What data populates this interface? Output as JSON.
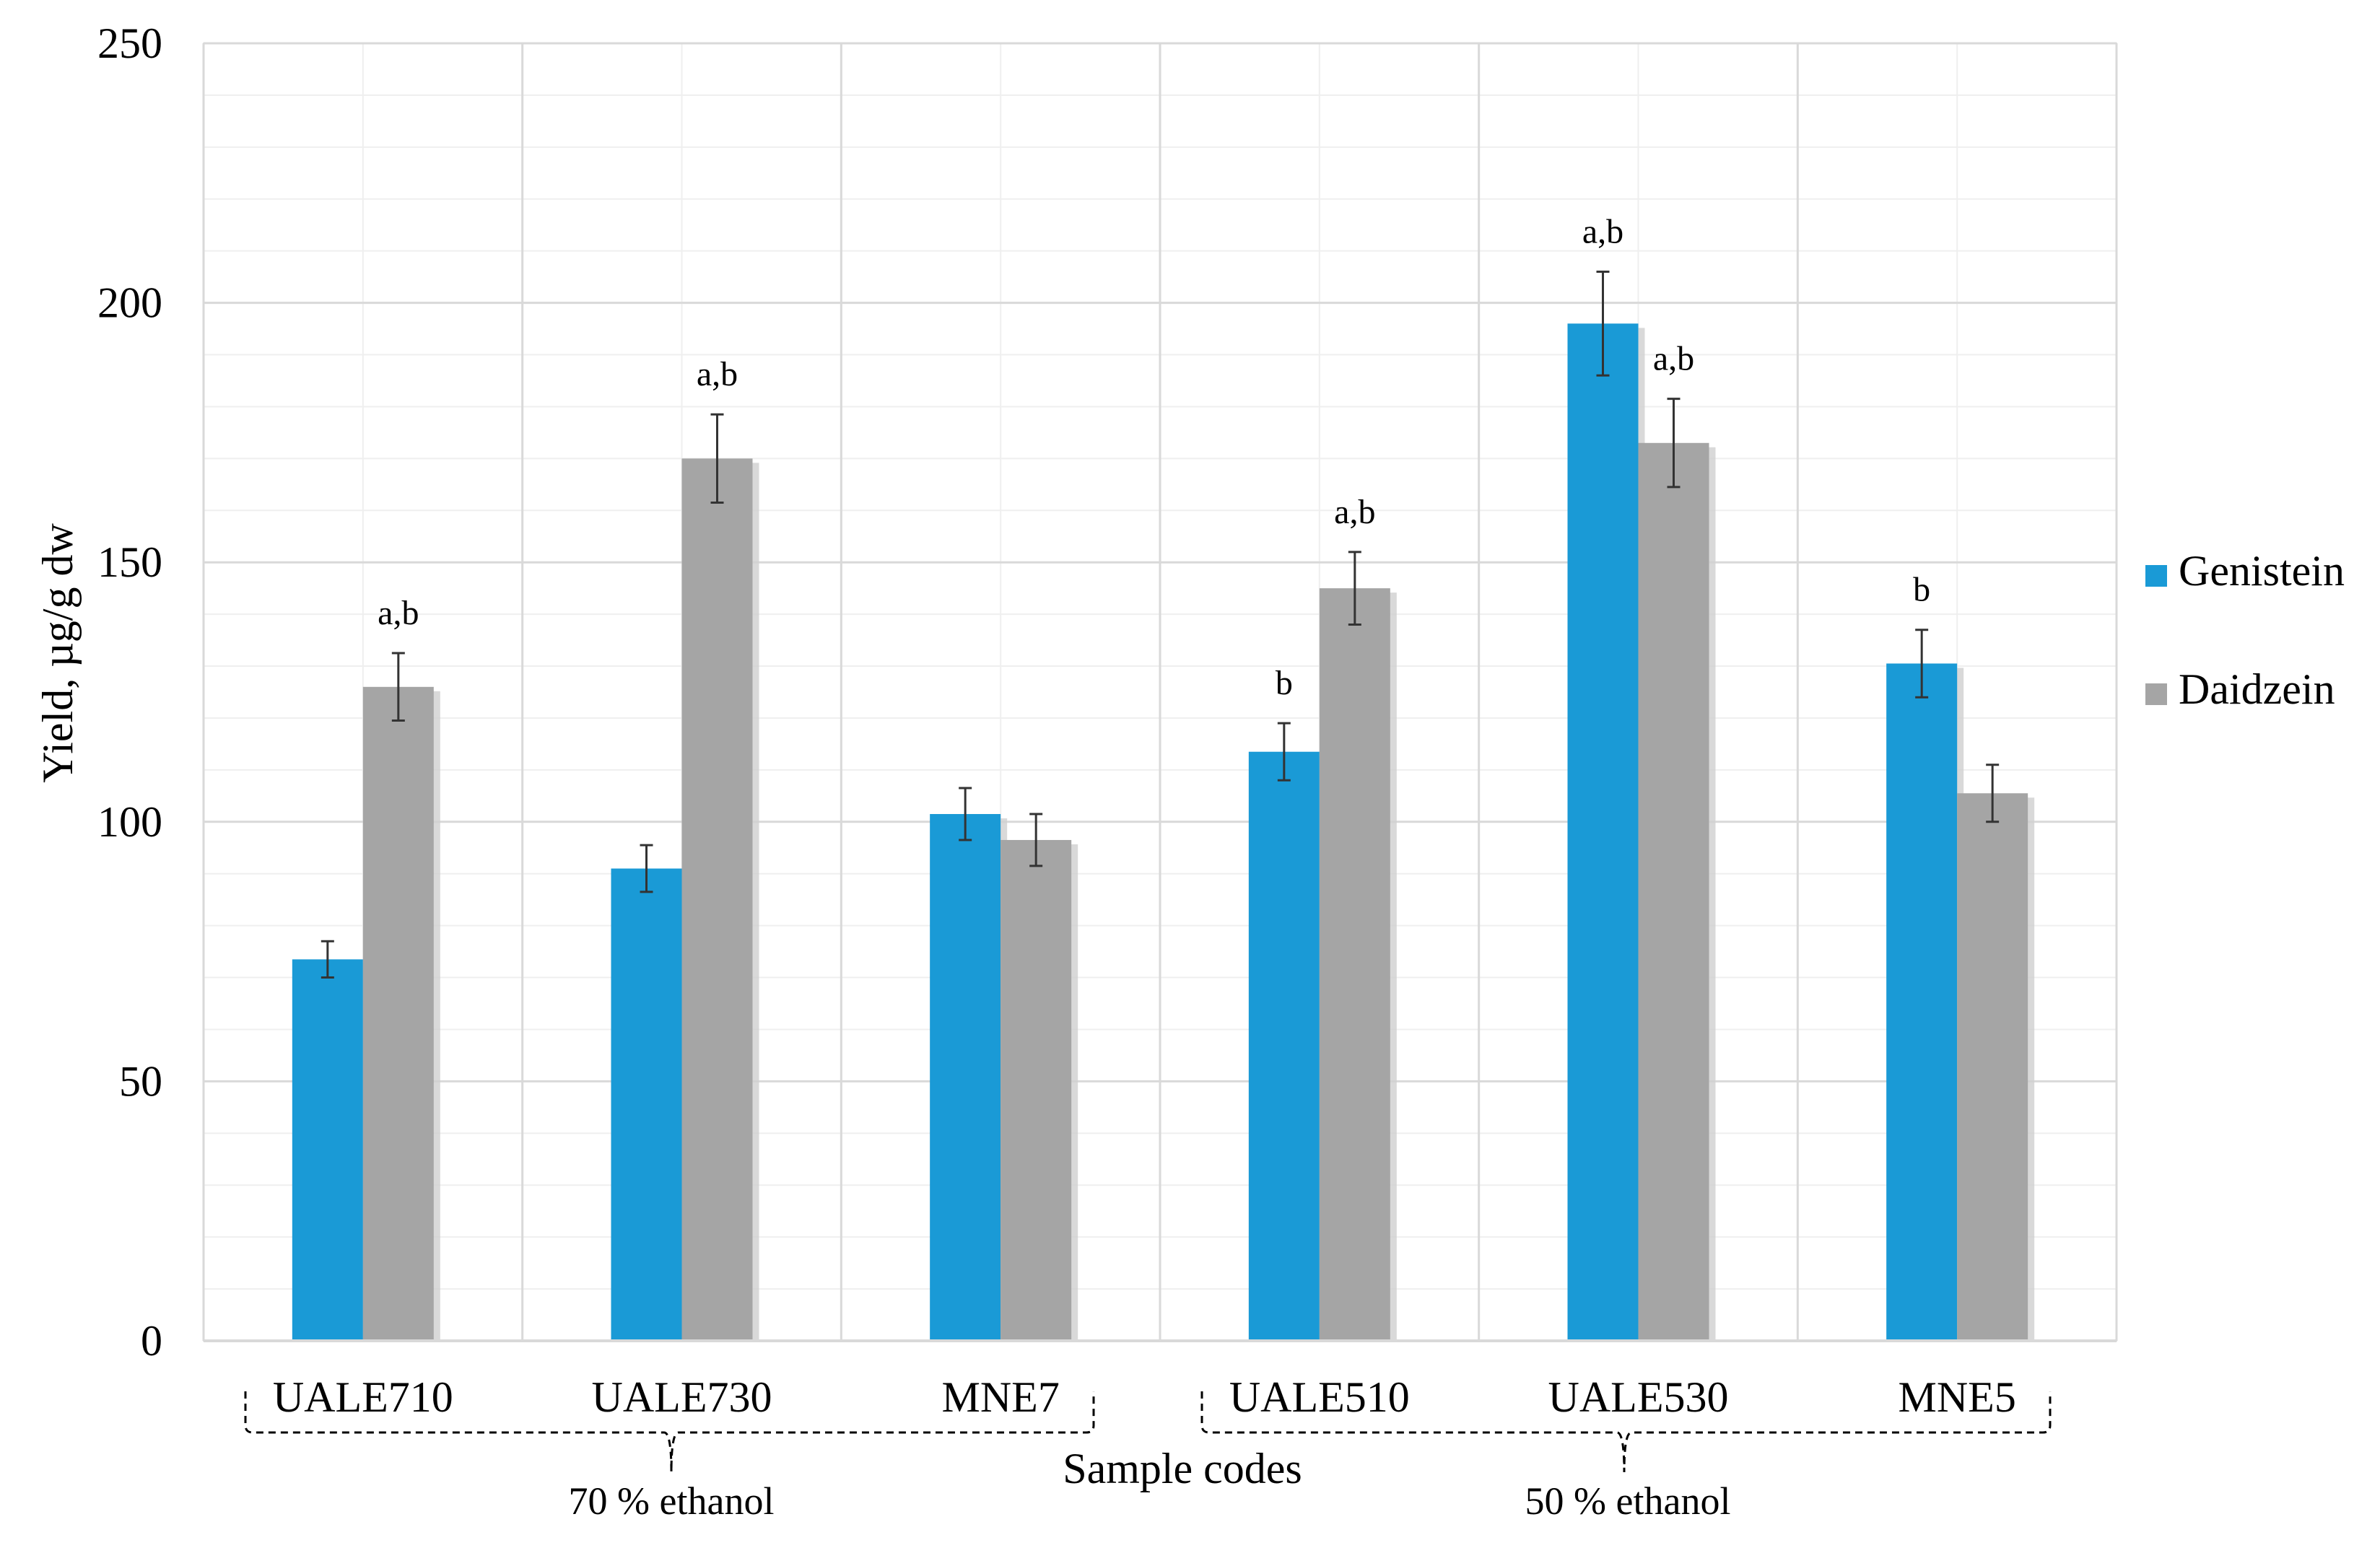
{
  "chart_data": {
    "type": "bar",
    "title": "",
    "xlabel": "Sample codes",
    "ylabel": "Yield, µg/g dw",
    "ylim": [
      0,
      250
    ],
    "yticks": [
      0,
      50,
      100,
      150,
      200,
      250
    ],
    "categories": [
      "UALE710",
      "UALE730",
      "MNE7",
      "UALE510",
      "UALE530",
      "MNE5"
    ],
    "series": [
      {
        "name": "Genistein",
        "color": "#1a9ad6",
        "values": [
          73.5,
          91,
          101.5,
          113.5,
          196,
          130.5
        ],
        "errors": [
          3.5,
          4.5,
          5,
          5.5,
          10,
          6.5
        ],
        "annotations": [
          "",
          "",
          "",
          "b",
          "a,b",
          "b"
        ]
      },
      {
        "name": "Daidzein",
        "color": "#a5a5a5",
        "values": [
          126,
          170,
          96.5,
          145,
          173,
          105.5
        ],
        "errors": [
          6.5,
          8.5,
          5,
          7,
          8.5,
          5.5
        ],
        "annotations": [
          "a,b",
          "a,b",
          "",
          "a,b",
          "a,b",
          ""
        ]
      }
    ],
    "groups": [
      {
        "label": "70 % ethanol",
        "categories": [
          "UALE710",
          "UALE730",
          "MNE7"
        ]
      },
      {
        "label": "50 % ethanol",
        "categories": [
          "UALE510",
          "UALE530",
          "MNE5"
        ]
      }
    ],
    "legend": "right",
    "grid": true
  }
}
